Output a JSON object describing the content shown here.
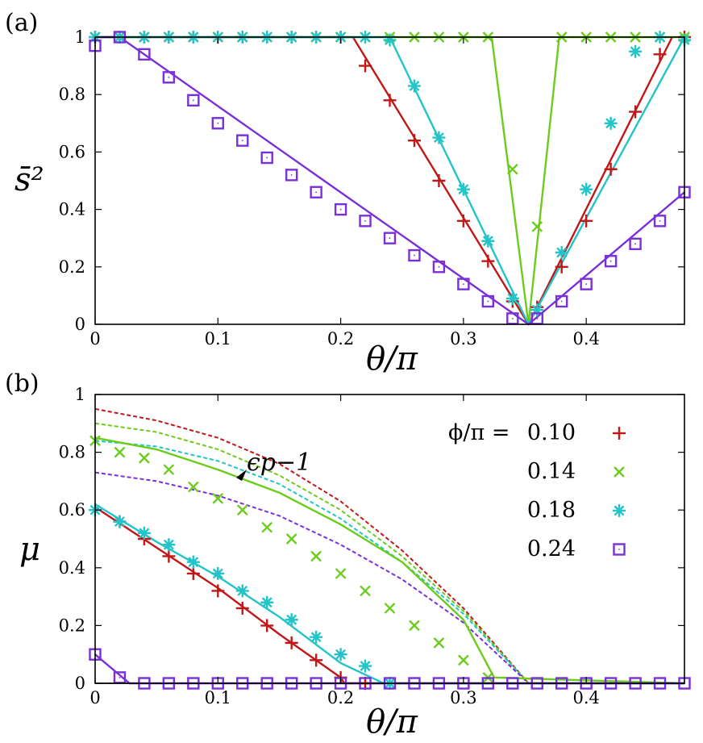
{
  "figure": {
    "panel_a_label": "(a)",
    "panel_b_label": "(b)",
    "legend_title": "ϕ/π = ",
    "annotation": "ϵp−1"
  },
  "chart_data": [
    {
      "type": "line",
      "panel": "(a)",
      "xlabel": "θ/π",
      "ylabel": "s̄²",
      "xlim": [
        0,
        0.48
      ],
      "ylim": [
        0,
        1
      ],
      "xticks": [
        "0",
        "0.1",
        "0.2",
        "0.3",
        "0.4"
      ],
      "yticks": [
        "0",
        "0.2",
        "0.4",
        "0.6",
        "0.8",
        "1"
      ],
      "grid": false,
      "series": [
        {
          "phi": "0.10",
          "color": "#c01818",
          "marker": "plus",
          "line": {
            "x": [
              0,
              0.21,
              0.353,
              0.47
            ],
            "y": [
              1,
              1,
              0,
              1
            ]
          },
          "points": {
            "x": [
              0,
              0.02,
              0.04,
              0.06,
              0.08,
              0.1,
              0.12,
              0.14,
              0.16,
              0.18,
              0.2,
              0.22,
              0.24,
              0.26,
              0.28,
              0.3,
              0.32,
              0.34,
              0.36,
              0.38,
              0.4,
              0.42,
              0.44,
              0.46,
              0.48
            ],
            "y": [
              1,
              1,
              1,
              1,
              1,
              1,
              1,
              1,
              1,
              1,
              1,
              0.9,
              0.78,
              0.64,
              0.5,
              0.36,
              0.22,
              0.08,
              0.06,
              0.2,
              0.36,
              0.54,
              0.74,
              0.94,
              1
            ]
          }
        },
        {
          "phi": "0.14",
          "color": "#6ccc1c",
          "marker": "cross",
          "line": {
            "x": [
              0,
              0.323,
              0.353,
              0.378,
              0.48
            ],
            "y": [
              1,
              1,
              0,
              1,
              1
            ]
          },
          "points": {
            "x": [
              0,
              0.02,
              0.04,
              0.06,
              0.08,
              0.1,
              0.12,
              0.14,
              0.16,
              0.18,
              0.2,
              0.22,
              0.24,
              0.26,
              0.28,
              0.3,
              0.32,
              0.34,
              0.36,
              0.38,
              0.4,
              0.42,
              0.44,
              0.46,
              0.48
            ],
            "y": [
              1,
              1,
              1,
              1,
              1,
              1,
              1,
              1,
              1,
              1,
              1,
              1,
              1,
              1,
              1,
              1,
              1,
              0.54,
              0.34,
              1,
              1,
              1,
              1,
              1,
              1
            ]
          }
        },
        {
          "phi": "0.18",
          "color": "#22c4c8",
          "marker": "star",
          "line": {
            "x": [
              0,
              0.24,
              0.353,
              0.48
            ],
            "y": [
              1,
              1,
              0,
              1
            ]
          },
          "points": {
            "x": [
              0,
              0.02,
              0.04,
              0.06,
              0.08,
              0.1,
              0.12,
              0.14,
              0.16,
              0.18,
              0.2,
              0.22,
              0.24,
              0.26,
              0.28,
              0.3,
              0.32,
              0.34,
              0.36,
              0.38,
              0.4,
              0.42,
              0.44,
              0.46,
              0.48
            ],
            "y": [
              1,
              1,
              1,
              1,
              1,
              1,
              1,
              1,
              1,
              1,
              1,
              1,
              0.99,
              0.83,
              0.65,
              0.47,
              0.29,
              0.09,
              0.05,
              0.25,
              0.47,
              0.7,
              0.95,
              1,
              0.99
            ]
          }
        },
        {
          "phi": "0.24",
          "color": "#7a30d8",
          "marker": "square",
          "line": {
            "x": [
              0,
              0.02,
              0.353,
              0.48
            ],
            "y": [
              1,
              1,
              0,
              0.46
            ]
          },
          "points": {
            "x": [
              0,
              0.02,
              0.04,
              0.06,
              0.08,
              0.1,
              0.12,
              0.14,
              0.16,
              0.18,
              0.2,
              0.22,
              0.24,
              0.26,
              0.28,
              0.3,
              0.32,
              0.34,
              0.36,
              0.38,
              0.4,
              0.42,
              0.44,
              0.46,
              0.48
            ],
            "y": [
              0.97,
              1,
              0.94,
              0.86,
              0.78,
              0.7,
              0.64,
              0.58,
              0.52,
              0.46,
              0.4,
              0.36,
              0.3,
              0.24,
              0.2,
              0.14,
              0.08,
              0.02,
              0.02,
              0.08,
              0.14,
              0.22,
              0.28,
              0.36,
              0.46
            ]
          }
        }
      ]
    },
    {
      "type": "line",
      "panel": "(b)",
      "xlabel": "θ/π",
      "ylabel": "μ",
      "xlim": [
        0,
        0.48
      ],
      "ylim": [
        0,
        1
      ],
      "xticks": [
        "0",
        "0.1",
        "0.2",
        "0.3",
        "0.4"
      ],
      "yticks": [
        "0",
        "0.2",
        "0.4",
        "0.6",
        "0.8",
        "1"
      ],
      "grid": false,
      "legend": "top-right",
      "series": [
        {
          "phi": "0.10",
          "color": "#c01818",
          "marker": "plus",
          "line": {
            "x": [
              0,
              0.05,
              0.1,
              0.15,
              0.2,
              0.203,
              0.48
            ],
            "y": [
              0.61,
              0.47,
              0.33,
              0.17,
              0.02,
              0,
              0
            ]
          },
          "dashed": {
            "x": [
              0,
              0.05,
              0.1,
              0.15,
              0.2,
              0.25,
              0.3,
              0.353
            ],
            "y": [
              0.95,
              0.91,
              0.85,
              0.76,
              0.63,
              0.46,
              0.26,
              0
            ]
          },
          "points": {
            "x": [
              0.02,
              0.04,
              0.06,
              0.08,
              0.1,
              0.12,
              0.14,
              0.16,
              0.18,
              0.2,
              0.22
            ],
            "y": [
              0.56,
              0.5,
              0.44,
              0.38,
              0.32,
              0.26,
              0.2,
              0.14,
              0.08,
              0.02,
              0
            ]
          }
        },
        {
          "phi": "0.14",
          "color": "#6ccc1c",
          "marker": "cross",
          "line": {
            "x": [
              0,
              0.05,
              0.1,
              0.15,
              0.2,
              0.25,
              0.3,
              0.325,
              0.48
            ],
            "y": [
              0.85,
              0.81,
              0.74,
              0.66,
              0.55,
              0.42,
              0.22,
              0.02,
              0
            ]
          },
          "dashed": {
            "x": [
              0,
              0.05,
              0.1,
              0.15,
              0.2,
              0.25,
              0.3,
              0.353
            ],
            "y": [
              0.9,
              0.87,
              0.81,
              0.72,
              0.6,
              0.44,
              0.25,
              0
            ]
          },
          "points": {
            "x": [
              0,
              0.02,
              0.04,
              0.06,
              0.08,
              0.1,
              0.12,
              0.14,
              0.16,
              0.18,
              0.2,
              0.22,
              0.24,
              0.26,
              0.28,
              0.3,
              0.32
            ],
            "y": [
              0.84,
              0.8,
              0.78,
              0.74,
              0.68,
              0.64,
              0.6,
              0.54,
              0.5,
              0.44,
              0.38,
              0.32,
              0.26,
              0.2,
              0.14,
              0.08,
              0.02
            ]
          }
        },
        {
          "phi": "0.18",
          "color": "#22c4c8",
          "marker": "star",
          "line": {
            "x": [
              0,
              0.05,
              0.1,
              0.15,
              0.2,
              0.235,
              0.48
            ],
            "y": [
              0.62,
              0.49,
              0.37,
              0.23,
              0.07,
              0,
              0
            ]
          },
          "dashed": {
            "x": [
              0,
              0.05,
              0.1,
              0.15,
              0.2,
              0.25,
              0.3,
              0.353
            ],
            "y": [
              0.84,
              0.82,
              0.77,
              0.69,
              0.57,
              0.42,
              0.24,
              0
            ]
          },
          "points": {
            "x": [
              0,
              0.02,
              0.04,
              0.06,
              0.08,
              0.1,
              0.12,
              0.14,
              0.16,
              0.18,
              0.2,
              0.22,
              0.24
            ],
            "y": [
              0.6,
              0.56,
              0.52,
              0.48,
              0.42,
              0.38,
              0.32,
              0.28,
              0.22,
              0.16,
              0.1,
              0.06,
              0
            ]
          }
        },
        {
          "phi": "0.24",
          "color": "#7a30d8",
          "marker": "square",
          "line": {
            "x": [
              0,
              0.028,
              0.48
            ],
            "y": [
              0.1,
              0,
              0
            ]
          },
          "dashed": {
            "x": [
              0,
              0.05,
              0.1,
              0.15,
              0.2,
              0.25,
              0.3,
              0.353
            ],
            "y": [
              0.73,
              0.7,
              0.65,
              0.58,
              0.48,
              0.36,
              0.21,
              0
            ]
          },
          "points": {
            "x": [
              0,
              0.02,
              0.04,
              0.06,
              0.08,
              0.1,
              0.12,
              0.14,
              0.16,
              0.18,
              0.2,
              0.22,
              0.24,
              0.26,
              0.28,
              0.3,
              0.32,
              0.34,
              0.36,
              0.38,
              0.4,
              0.42,
              0.44,
              0.46,
              0.48
            ],
            "y": [
              0.1,
              0.02,
              0,
              0,
              0,
              0,
              0,
              0,
              0,
              0,
              0,
              0,
              0,
              0,
              0,
              0,
              0,
              0,
              0,
              0,
              0,
              0,
              0,
              0,
              0
            ]
          }
        }
      ]
    }
  ]
}
